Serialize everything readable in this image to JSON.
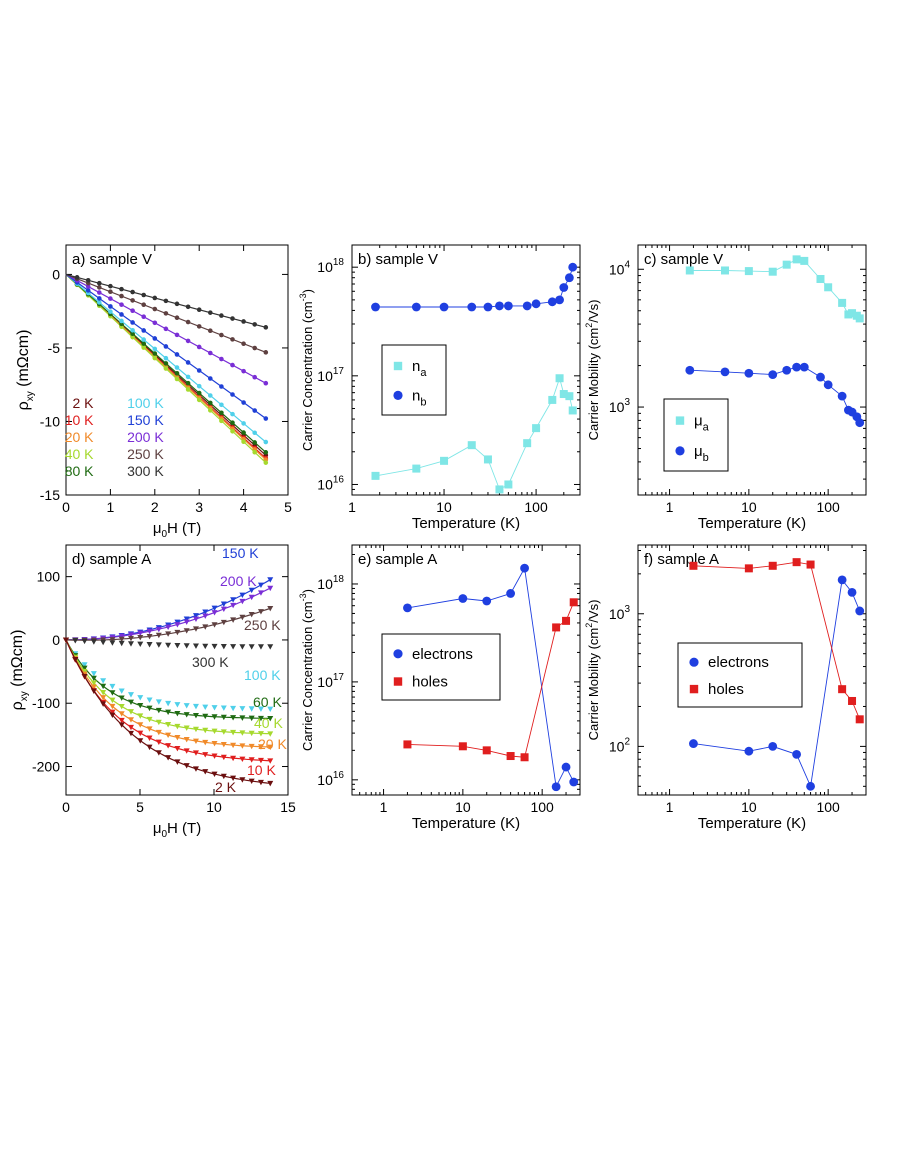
{
  "chart_data": [
    {
      "id": "a",
      "type": "line",
      "title": "a) sample V",
      "xlabel_main": "μ",
      "xlabel_sub": "0",
      "xlabel_tail": "H (T)",
      "ylabel_main": "ρ",
      "ylabel_sub": "xy",
      "ylabel_tail": " (mΩcm)",
      "xscale": "linear",
      "yscale": "linear",
      "xlim": [
        0,
        5
      ],
      "ylim": [
        -15,
        2
      ],
      "xticks": [
        0,
        1,
        2,
        3,
        4,
        5
      ],
      "yticks": [
        0,
        -5,
        -10,
        -15
      ],
      "xticklabels": [
        "0",
        "1",
        "2",
        "3",
        "4",
        "5"
      ],
      "yticklabels": [
        "0",
        "-5",
        "-10",
        "-15"
      ],
      "series": [
        {
          "name": "2 K",
          "color": "#6b0f0f",
          "marker": "circle",
          "kind": "linear",
          "x_end": 4.5,
          "y_end": -12.3
        },
        {
          "name": "10 K",
          "color": "#e01e1e",
          "marker": "circle",
          "kind": "linear",
          "x_end": 4.5,
          "y_end": -12.5
        },
        {
          "name": "20 K",
          "color": "#f08a2a",
          "marker": "circle",
          "kind": "linear",
          "x_end": 4.5,
          "y_end": -12.6
        },
        {
          "name": "40 K",
          "color": "#a6d92e",
          "marker": "circle",
          "kind": "linear",
          "x_end": 4.5,
          "y_end": -12.8
        },
        {
          "name": "80 K",
          "color": "#1f6b12",
          "marker": "circle",
          "kind": "linear",
          "x_end": 4.5,
          "y_end": -12.1
        },
        {
          "name": "100 K",
          "color": "#4fd0ea",
          "marker": "circle",
          "kind": "linear",
          "x_end": 4.5,
          "y_end": -11.4
        },
        {
          "name": "150 K",
          "color": "#1f3fd6",
          "marker": "circle",
          "kind": "linear",
          "x_end": 4.5,
          "y_end": -9.8
        },
        {
          "name": "200 K",
          "color": "#7a2ed6",
          "marker": "circle",
          "kind": "linear",
          "x_end": 4.5,
          "y_end": -7.4
        },
        {
          "name": "250 K",
          "color": "#5e4040",
          "marker": "circle",
          "kind": "linear",
          "x_end": 4.5,
          "y_end": -5.3
        },
        {
          "name": "300 K",
          "color": "#333333",
          "marker": "circle",
          "kind": "linear",
          "x_end": 4.5,
          "y_end": -3.6
        }
      ]
    },
    {
      "id": "b",
      "type": "scatter",
      "title": "b) sample V",
      "xlabel": "Temperature (K)",
      "ylabel": "Carrier Concentration (cm",
      "ylabel_sup": "-3",
      "ylabel_tail": ")",
      "xscale": "log",
      "yscale": "log",
      "xlim": [
        1,
        300
      ],
      "ylim": [
        8000000000000000.0,
        1.6e+18
      ],
      "xtick_labels": [
        "1",
        "10",
        "100"
      ],
      "ytick_labels": [
        {
          "b": "10",
          "e": "16"
        },
        {
          "b": "10",
          "e": "17"
        },
        {
          "b": "10",
          "e": "18"
        }
      ],
      "legend": {
        "position": "middle-left",
        "entries": [
          {
            "sym": "n",
            "sub": "a"
          },
          {
            "sym": "n",
            "sub": "b"
          }
        ]
      },
      "series": [
        {
          "name": "n_a",
          "color": "#7fe6e6",
          "marker": "square",
          "x": [
            1.8,
            5,
            10,
            20,
            30,
            40,
            50,
            80,
            100,
            150,
            180,
            200,
            230,
            250
          ],
          "y": [
            1.2e+16,
            1.4e+16,
            1.65e+16,
            2.3e+16,
            1.7e+16,
            9000000000000000.0,
            1e+16,
            2.4e+16,
            3.3e+16,
            6e+16,
            9.5e+16,
            6.8e+16,
            6.5e+16,
            4.8e+16
          ]
        },
        {
          "name": "n_b",
          "color": "#1f3fe0",
          "marker": "circle",
          "x": [
            1.8,
            5,
            10,
            20,
            30,
            40,
            50,
            80,
            100,
            150,
            180,
            200,
            230,
            250
          ],
          "y": [
            4.3e+17,
            4.3e+17,
            4.3e+17,
            4.3e+17,
            4.3e+17,
            4.4e+17,
            4.4e+17,
            4.4e+17,
            4.6e+17,
            4.8e+17,
            5e+17,
            6.5e+17,
            8e+17,
            1e+18
          ]
        }
      ]
    },
    {
      "id": "c",
      "type": "scatter",
      "title": "c) sample V",
      "xlabel": "Temperature (K)",
      "ylabel": "Carrier Mobility (cm",
      "ylabel_sup": "2",
      "ylabel_tail": "/Vs)",
      "xscale": "log",
      "yscale": "log",
      "xlim": [
        0.4,
        300
      ],
      "ylim": [
        230,
        15000
      ],
      "xtick_labels": [
        "1",
        "10",
        "100"
      ],
      "ytick_labels": [
        {
          "b": "10",
          "e": "3"
        },
        {
          "b": "10",
          "e": "4"
        }
      ],
      "legend": {
        "position": "bottom-left",
        "entries": [
          {
            "sym": "μ",
            "sub": "a"
          },
          {
            "sym": "μ",
            "sub": "b"
          }
        ]
      },
      "series": [
        {
          "name": "μ_a",
          "color": "#7fe6e6",
          "marker": "square",
          "x": [
            1.8,
            5,
            10,
            20,
            30,
            40,
            50,
            80,
            100,
            150,
            180,
            200,
            230,
            250
          ],
          "y": [
            9800,
            9800,
            9700,
            9600,
            10800,
            11800,
            11500,
            8500,
            7400,
            5700,
            4700,
            4800,
            4600,
            4400
          ]
        },
        {
          "name": "μ_b",
          "color": "#1f3fe0",
          "marker": "circle",
          "x": [
            1.8,
            5,
            10,
            20,
            30,
            40,
            50,
            80,
            100,
            150,
            180,
            200,
            230,
            250
          ],
          "y": [
            1850,
            1800,
            1760,
            1720,
            1850,
            1950,
            1950,
            1650,
            1450,
            1200,
            950,
            920,
            850,
            770
          ]
        }
      ]
    },
    {
      "id": "d",
      "type": "line",
      "title": "d) sample A",
      "xlabel_main": "μ",
      "xlabel_sub": "0",
      "xlabel_tail": "H (T)",
      "ylabel_main": "ρ",
      "ylabel_sub": "xy",
      "ylabel_tail": " (mΩcm)",
      "xscale": "linear",
      "yscale": "linear",
      "xlim": [
        0,
        15
      ],
      "ylim": [
        -245,
        150
      ],
      "xticks": [
        0,
        5,
        10,
        15
      ],
      "yticks": [
        100,
        0,
        -100,
        -200
      ],
      "xticklabels": [
        "0",
        "5",
        "10",
        "15"
      ],
      "yticklabels": [
        "100",
        "0",
        "-100",
        "-200"
      ],
      "series": [
        {
          "name": "150 K",
          "color": "#1f3fd6",
          "marker": "triangle",
          "kind": "quad",
          "a": 0.5,
          "b": 0.0,
          "x_end": 13.8,
          "fit": true
        },
        {
          "name": "200 K",
          "color": "#7a2ed6",
          "marker": "triangle",
          "kind": "quad",
          "a": 0.43,
          "b": 0.0,
          "x_end": 13.8,
          "fit": true
        },
        {
          "name": "250 K",
          "color": "#5e4040",
          "marker": "triangle",
          "kind": "quad",
          "a": 0.32,
          "b": -0.8,
          "x_end": 13.8,
          "fit": true
        },
        {
          "name": "300 K",
          "color": "#333333",
          "marker": "triangle",
          "kind": "quad",
          "a": 0.06,
          "b": -1.6,
          "x_end": 13.8,
          "fit": false
        },
        {
          "name": "100 K",
          "color": "#4fd0ea",
          "marker": "triangle",
          "kind": "sat",
          "A": -110,
          "k": 0.35,
          "c": 0.0,
          "x_end": 13.8,
          "fit": false
        },
        {
          "name": "60 K",
          "color": "#1f6b12",
          "marker": "triangle",
          "kind": "sat",
          "A": -125,
          "k": 0.35,
          "c": 0.0,
          "x_end": 13.8,
          "fit": true
        },
        {
          "name": "40 K",
          "color": "#a6d92e",
          "marker": "triangle",
          "kind": "sat",
          "A": -150,
          "k": 0.32,
          "c": 0.0,
          "x_end": 13.8,
          "fit": true
        },
        {
          "name": "20 K",
          "color": "#f08a2a",
          "marker": "triangle",
          "kind": "sat",
          "A": -172,
          "k": 0.3,
          "c": 0.0,
          "x_end": 13.8,
          "fit": true
        },
        {
          "name": "10 K",
          "color": "#e01e1e",
          "marker": "triangle",
          "kind": "sat",
          "A": -195,
          "k": 0.28,
          "c": 0.0,
          "x_end": 13.8,
          "fit": true
        },
        {
          "name": "2 K",
          "color": "#6b0f0f",
          "marker": "triangle",
          "kind": "sat",
          "A": -238,
          "k": 0.22,
          "c": 0.0,
          "x_end": 13.8,
          "fit": true
        }
      ]
    },
    {
      "id": "e",
      "type": "scatter",
      "title": "e) sample A",
      "xlabel": "Temperature (K)",
      "ylabel": "Carrier Concentration (cm",
      "ylabel_sup": "-3",
      "ylabel_tail": ")",
      "xscale": "log",
      "yscale": "log",
      "xlim": [
        0.4,
        300
      ],
      "ylim": [
        7000000000000000.0,
        2.5e+18
      ],
      "xtick_labels": [
        "1",
        "10",
        "100"
      ],
      "ytick_labels": [
        {
          "b": "10",
          "e": "16"
        },
        {
          "b": "10",
          "e": "17"
        },
        {
          "b": "10",
          "e": "18"
        }
      ],
      "legend": {
        "position": "middle-left",
        "entries": [
          {
            "sym": "electrons",
            "sub": ""
          },
          {
            "sym": "holes",
            "sub": ""
          }
        ]
      },
      "series": [
        {
          "name": "electrons",
          "color": "#1f3fe0",
          "marker": "circle",
          "x": [
            2,
            10,
            20,
            40,
            60,
            150,
            200,
            250
          ],
          "y": [
            5.7e+17,
            7.1e+17,
            6.7e+17,
            8e+17,
            1.45e+18,
            8500000000000000.0,
            1.35e+16,
            9500000000000000.0
          ]
        },
        {
          "name": "holes",
          "color": "#e01e1e",
          "marker": "square",
          "x": [
            2,
            10,
            20,
            40,
            60,
            150,
            200,
            250
          ],
          "y": [
            2.3e+16,
            2.2e+16,
            2e+16,
            1.75e+16,
            1.7e+16,
            3.6e+17,
            4.2e+17,
            6.5e+17
          ]
        }
      ]
    },
    {
      "id": "f",
      "type": "scatter",
      "title": "f) sample A",
      "xlabel": "Temperature (K)",
      "ylabel": "Carrier Mobility (cm",
      "ylabel_sup": "2",
      "ylabel_tail": "/Vs)",
      "xscale": "log",
      "yscale": "log",
      "xlim": [
        0.4,
        300
      ],
      "ylim": [
        43,
        3300
      ],
      "xtick_labels": [
        "1",
        "10",
        "100"
      ],
      "ytick_labels": [
        {
          "b": "10",
          "e": "2"
        },
        {
          "b": "10",
          "e": "3"
        }
      ],
      "legend": {
        "position": "middle-left",
        "entries": [
          {
            "sym": "electrons",
            "sub": ""
          },
          {
            "sym": "holes",
            "sub": ""
          }
        ]
      },
      "series": [
        {
          "name": "electrons",
          "color": "#1f3fe0",
          "marker": "circle",
          "x": [
            2,
            10,
            20,
            40,
            60,
            150,
            200,
            250
          ],
          "y": [
            105,
            92,
            100,
            87,
            50,
            1800,
            1450,
            1050
          ]
        },
        {
          "name": "holes",
          "color": "#e01e1e",
          "marker": "square",
          "x": [
            2,
            10,
            20,
            40,
            60,
            150,
            200,
            250
          ],
          "y": [
            2300,
            2200,
            2300,
            2450,
            2350,
            270,
            220,
            160
          ]
        }
      ]
    }
  ]
}
